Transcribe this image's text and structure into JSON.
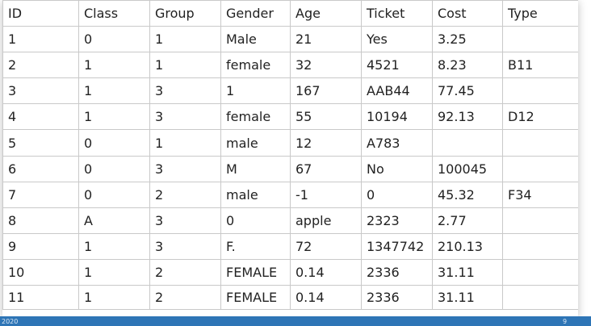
{
  "table": {
    "headers": [
      "ID",
      "Class",
      "Group",
      "Gender",
      "Age",
      "Ticket",
      "Cost",
      "Type"
    ],
    "rows": [
      [
        "1",
        "0",
        "1",
        "Male",
        "21",
        "Yes",
        "3.25",
        ""
      ],
      [
        "2",
        "1",
        "1",
        "female",
        "32",
        "4521",
        "8.23",
        "B11"
      ],
      [
        "3",
        "1",
        "3",
        "1",
        "167",
        "AAB44",
        "77.45",
        ""
      ],
      [
        "4",
        "1",
        "3",
        "female",
        "55",
        "10194",
        "92.13",
        "D12"
      ],
      [
        "5",
        "0",
        "1",
        "male",
        "12",
        "A783",
        "",
        ""
      ],
      [
        "6",
        "0",
        "3",
        "M",
        "67",
        "No",
        "100045",
        ""
      ],
      [
        "7",
        "0",
        "2",
        "male",
        "-1",
        "0",
        "45.32",
        "F34"
      ],
      [
        "8",
        "A",
        "3",
        "0",
        "apple",
        "2323",
        "2.77",
        ""
      ],
      [
        "9",
        "1",
        "3",
        "F.",
        "72",
        "1347742",
        "210.13",
        ""
      ],
      [
        "10",
        "1",
        "2",
        "FEMALE",
        "0.14",
        "2336",
        "31.11",
        ""
      ],
      [
        "11",
        "1",
        "2",
        "FEMALE",
        "0.14",
        "2336",
        "31.11",
        ""
      ]
    ]
  },
  "footer": {
    "left_text": "2020",
    "right_text": "9",
    "bar_color": "#2e75b6"
  }
}
